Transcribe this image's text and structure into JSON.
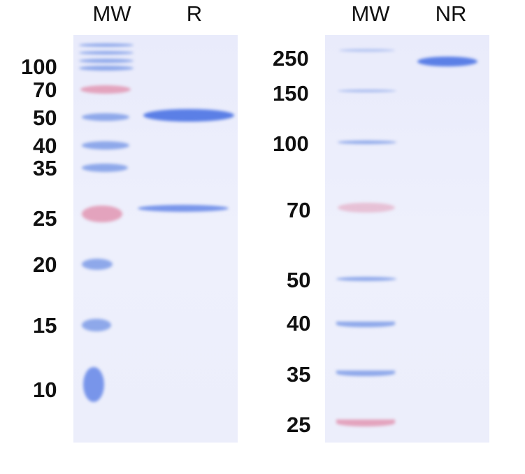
{
  "left_gel": {
    "lanes": [
      "MW",
      "R"
    ],
    "mw_labels": [
      "100",
      "70",
      "50",
      "40",
      "35",
      "25",
      "20",
      "15",
      "10"
    ]
  },
  "right_gel": {
    "lanes": [
      "MW",
      "NR"
    ],
    "mw_labels": [
      "250",
      "150",
      "100",
      "70",
      "50",
      "40",
      "35",
      "25"
    ]
  },
  "colors": {
    "marker": "#8ea8ea",
    "marker_pink": "#e3a3bd",
    "sample_band": "#5b7fe6",
    "gel_bg": "#eceefb"
  }
}
